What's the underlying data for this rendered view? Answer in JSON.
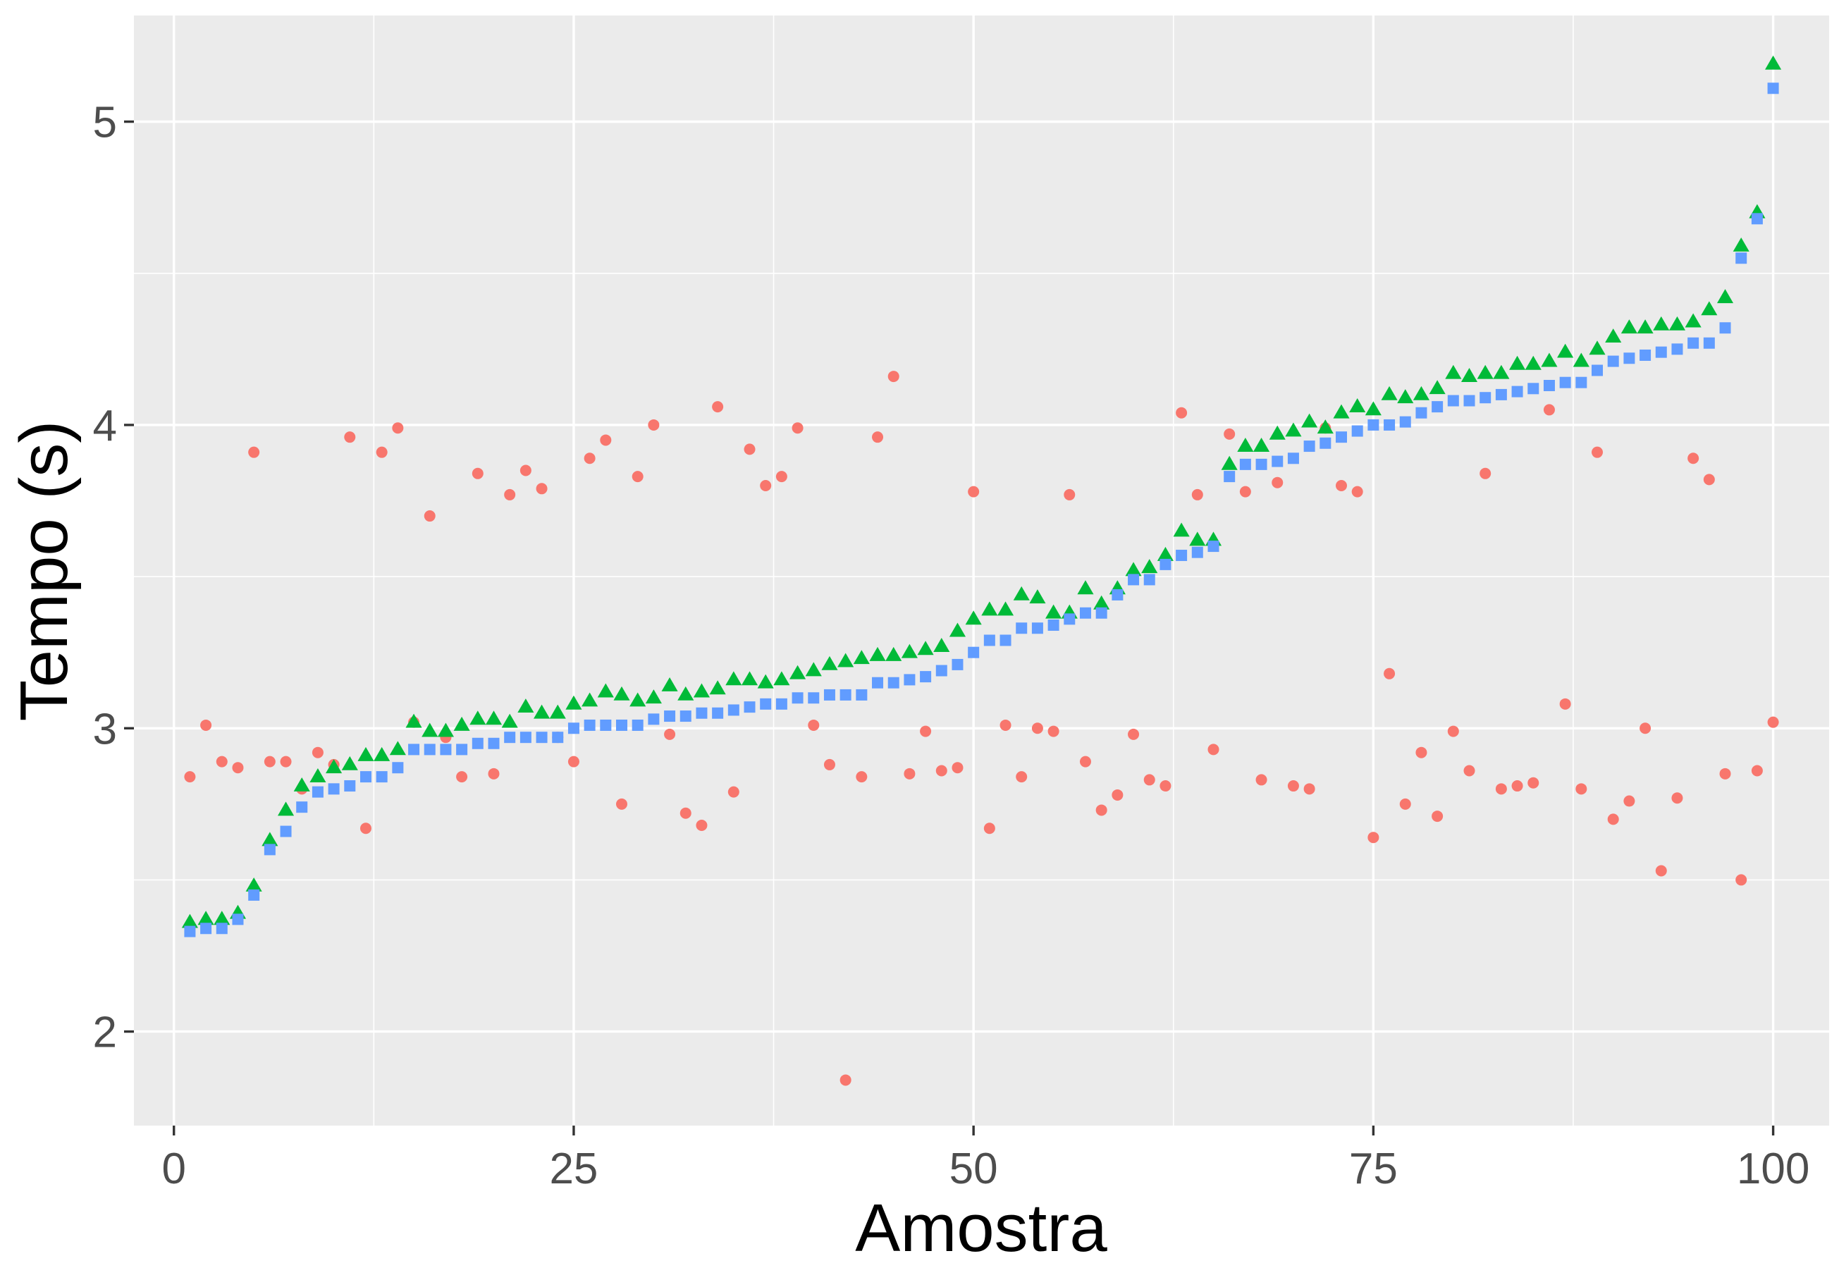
{
  "chart_data": {
    "type": "scatter",
    "title": "",
    "xlabel": "Amostra",
    "ylabel": "Tempo (s)",
    "xlim": [
      -2.5,
      103.5
    ],
    "ylim": [
      1.69,
      5.35
    ],
    "x_ticks": [
      0,
      25,
      50,
      75,
      100
    ],
    "y_ticks": [
      2,
      3,
      4,
      5
    ],
    "grid": true,
    "legend": "none",
    "colors": {
      "panel": "#ebebeb",
      "grid": "#ffffff",
      "tick": "#333333"
    },
    "series": [
      {
        "marker": "circle",
        "color": "#F8766D",
        "x": [
          1,
          2,
          3,
          4,
          5,
          6,
          7,
          8,
          9,
          10,
          11,
          12,
          13,
          14,
          15,
          16,
          17,
          18,
          19,
          20,
          21,
          22,
          23,
          24,
          25,
          26,
          27,
          28,
          29,
          30,
          31,
          32,
          33,
          34,
          35,
          36,
          37,
          38,
          39,
          40,
          41,
          42,
          43,
          44,
          45,
          46,
          47,
          48,
          49,
          50,
          51,
          52,
          53,
          54,
          55,
          56,
          57,
          58,
          59,
          60,
          61,
          62,
          63,
          64,
          65,
          66,
          67,
          68,
          69,
          70,
          71,
          72,
          73,
          74,
          75,
          76,
          77,
          78,
          79,
          80,
          81,
          82,
          83,
          84,
          85,
          86,
          87,
          88,
          89,
          90,
          91,
          92,
          93,
          94,
          95,
          96,
          97,
          98,
          99,
          100
        ],
        "y": [
          2.84,
          3.01,
          2.89,
          2.87,
          3.91,
          2.89,
          2.89,
          2.8,
          2.92,
          2.88,
          3.96,
          2.67,
          3.91,
          3.99,
          3.02,
          3.7,
          2.97,
          2.84,
          3.84,
          2.85,
          3.77,
          3.85,
          3.79,
          2.97,
          2.89,
          3.89,
          3.95,
          2.75,
          3.83,
          4.0,
          2.98,
          2.72,
          2.68,
          4.06,
          2.79,
          3.92,
          3.8,
          3.83,
          3.99,
          3.01,
          2.88,
          1.84,
          2.84,
          3.96,
          4.16,
          2.85,
          2.99,
          2.86,
          2.87,
          3.78,
          2.67,
          3.01,
          2.84,
          3.0,
          2.99,
          3.77,
          2.89,
          2.73,
          2.78,
          2.98,
          2.83,
          2.81,
          4.04,
          3.77,
          2.93,
          3.97,
          3.78,
          2.83,
          3.81,
          2.81,
          2.8,
          3.99,
          3.8,
          3.78,
          2.64,
          3.18,
          2.75,
          2.92,
          2.71,
          2.99,
          2.86,
          3.84,
          2.8,
          2.81,
          2.82,
          4.05,
          3.08,
          2.8,
          3.91,
          2.7,
          2.76,
          3.0,
          2.53,
          2.77,
          3.89,
          3.82,
          2.85,
          2.5,
          2.86,
          3.02
        ]
      },
      {
        "marker": "triangle",
        "color": "#00BA38",
        "x": [
          1,
          2,
          3,
          4,
          5,
          6,
          7,
          8,
          9,
          10,
          11,
          12,
          13,
          14,
          15,
          16,
          17,
          18,
          19,
          20,
          21,
          22,
          23,
          24,
          25,
          26,
          27,
          28,
          29,
          30,
          31,
          32,
          33,
          34,
          35,
          36,
          37,
          38,
          39,
          40,
          41,
          42,
          43,
          44,
          45,
          46,
          47,
          48,
          49,
          50,
          51,
          52,
          53,
          54,
          55,
          56,
          57,
          58,
          59,
          60,
          61,
          62,
          63,
          64,
          65,
          66,
          67,
          68,
          69,
          70,
          71,
          72,
          73,
          74,
          75,
          76,
          77,
          78,
          79,
          80,
          81,
          82,
          83,
          84,
          85,
          86,
          87,
          88,
          89,
          90,
          91,
          92,
          93,
          94,
          95,
          96,
          97,
          98,
          99,
          100
        ],
        "y": [
          2.36,
          2.37,
          2.37,
          2.39,
          2.48,
          2.63,
          2.73,
          2.81,
          2.84,
          2.87,
          2.88,
          2.91,
          2.91,
          2.93,
          3.02,
          2.99,
          2.99,
          3.01,
          3.03,
          3.03,
          3.02,
          3.07,
          3.05,
          3.05,
          3.08,
          3.09,
          3.12,
          3.11,
          3.09,
          3.1,
          3.14,
          3.11,
          3.12,
          3.13,
          3.16,
          3.16,
          3.15,
          3.16,
          3.18,
          3.19,
          3.21,
          3.22,
          3.23,
          3.24,
          3.24,
          3.25,
          3.26,
          3.27,
          3.32,
          3.36,
          3.39,
          3.39,
          3.44,
          3.43,
          3.38,
          3.38,
          3.46,
          3.41,
          3.46,
          3.52,
          3.53,
          3.57,
          3.65,
          3.62,
          3.62,
          3.87,
          3.93,
          3.93,
          3.97,
          3.98,
          4.01,
          3.99,
          4.04,
          4.06,
          4.05,
          4.1,
          4.09,
          4.1,
          4.12,
          4.17,
          4.16,
          4.17,
          4.17,
          4.2,
          4.2,
          4.21,
          4.24,
          4.21,
          4.25,
          4.29,
          4.32,
          4.32,
          4.33,
          4.33,
          4.34,
          4.38,
          4.42,
          4.59,
          4.7,
          5.19
        ]
      },
      {
        "marker": "square",
        "color": "#619CFF",
        "x": [
          1,
          2,
          3,
          4,
          5,
          6,
          7,
          8,
          9,
          10,
          11,
          12,
          13,
          14,
          15,
          16,
          17,
          18,
          19,
          20,
          21,
          22,
          23,
          24,
          25,
          26,
          27,
          28,
          29,
          30,
          31,
          32,
          33,
          34,
          35,
          36,
          37,
          38,
          39,
          40,
          41,
          42,
          43,
          44,
          45,
          46,
          47,
          48,
          49,
          50,
          51,
          52,
          53,
          54,
          55,
          56,
          57,
          58,
          59,
          60,
          61,
          62,
          63,
          64,
          65,
          66,
          67,
          68,
          69,
          70,
          71,
          72,
          73,
          74,
          75,
          76,
          77,
          78,
          79,
          80,
          81,
          82,
          83,
          84,
          85,
          86,
          87,
          88,
          89,
          90,
          91,
          92,
          93,
          94,
          95,
          96,
          97,
          98,
          99,
          100
        ],
        "y": [
          2.33,
          2.34,
          2.34,
          2.37,
          2.45,
          2.6,
          2.66,
          2.74,
          2.79,
          2.8,
          2.81,
          2.84,
          2.84,
          2.87,
          2.93,
          2.93,
          2.93,
          2.93,
          2.95,
          2.95,
          2.97,
          2.97,
          2.97,
          2.97,
          3.0,
          3.01,
          3.01,
          3.01,
          3.01,
          3.03,
          3.04,
          3.04,
          3.05,
          3.05,
          3.06,
          3.07,
          3.08,
          3.08,
          3.1,
          3.1,
          3.11,
          3.11,
          3.11,
          3.15,
          3.15,
          3.16,
          3.17,
          3.19,
          3.21,
          3.25,
          3.29,
          3.29,
          3.33,
          3.33,
          3.34,
          3.36,
          3.38,
          3.38,
          3.44,
          3.49,
          3.49,
          3.54,
          3.57,
          3.58,
          3.6,
          3.83,
          3.87,
          3.87,
          3.88,
          3.89,
          3.93,
          3.94,
          3.96,
          3.98,
          4.0,
          4.0,
          4.01,
          4.04,
          4.06,
          4.08,
          4.08,
          4.09,
          4.1,
          4.11,
          4.12,
          4.13,
          4.14,
          4.14,
          4.18,
          4.21,
          4.22,
          4.23,
          4.24,
          4.25,
          4.27,
          4.27,
          4.32,
          4.55,
          4.68,
          5.11
        ]
      }
    ]
  }
}
